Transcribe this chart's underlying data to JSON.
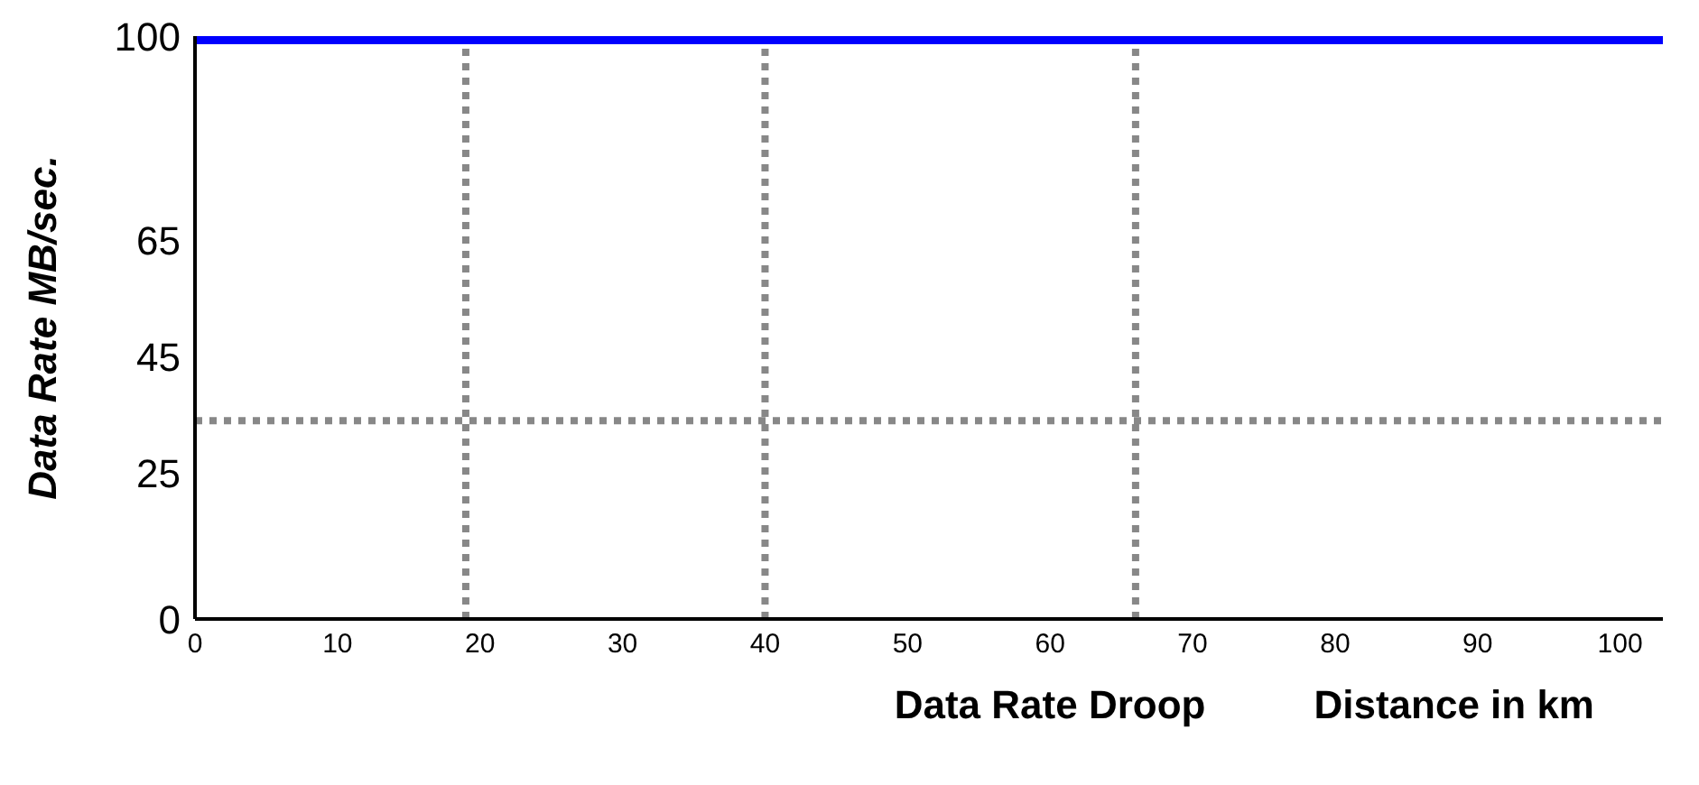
{
  "chart_data": {
    "type": "line",
    "title": "Data Rate Droop",
    "xlabel": "Distance in km",
    "ylabel": "Data Rate MB/sec.",
    "x": [
      0,
      103
    ],
    "series": [
      {
        "color": "#0000ff",
        "values": [
          100,
          100
        ]
      }
    ],
    "xlim": [
      0,
      103
    ],
    "xticks": [
      0,
      10,
      20,
      30,
      40,
      50,
      60,
      70,
      80,
      90,
      100
    ],
    "ylim": [
      0,
      100
    ],
    "yticks": [
      0,
      25,
      45,
      65,
      100
    ],
    "ref_lines": [
      {
        "axis": "y",
        "value": 34,
        "color": "#888888",
        "line_style": "dotted"
      },
      {
        "axis": "x",
        "value": 19,
        "color": "#888888",
        "line_style": "dotted"
      },
      {
        "axis": "x",
        "value": 40,
        "color": "#888888",
        "line_style": "dotted"
      },
      {
        "axis": "x",
        "value": 66,
        "color": "#888888",
        "line_style": "dotted"
      }
    ],
    "grid": false,
    "legend": false,
    "marker": "none",
    "line_style": "solid"
  }
}
